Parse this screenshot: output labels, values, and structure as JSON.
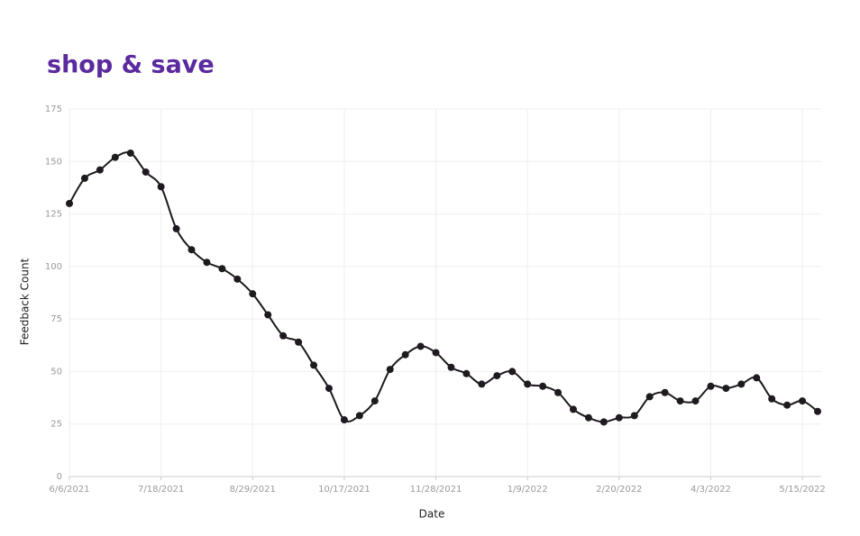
{
  "chart_data": {
    "type": "line",
    "title": "shop & save",
    "x_label": "Date",
    "y_label": "Feedback Count",
    "categories": [
      "6/6/2021",
      null,
      null,
      null,
      null,
      null,
      "7/18/2021",
      null,
      null,
      null,
      null,
      null,
      "8/29/2021",
      null,
      null,
      null,
      null,
      null,
      "10/17/2021",
      null,
      null,
      null,
      null,
      null,
      "11/28/2021",
      null,
      null,
      null,
      null,
      null,
      "1/9/2022",
      null,
      null,
      null,
      null,
      null,
      "2/20/2022",
      null,
      null,
      null,
      null,
      null,
      "4/3/2022",
      null,
      null,
      null,
      null,
      null,
      "5/15/2022",
      null
    ],
    "series": [
      {
        "name": "Feedback Count",
        "color": "#1e1a1f",
        "values": [
          130,
          142,
          146,
          152,
          154,
          145,
          138,
          118,
          108,
          102,
          99,
          94,
          87,
          77,
          67,
          64,
          53,
          42,
          27,
          29,
          36,
          51,
          58,
          62,
          59,
          52,
          49,
          44,
          48,
          50,
          44,
          43,
          40,
          32,
          28,
          26,
          28,
          29,
          38,
          40,
          36,
          36,
          43,
          42,
          44,
          47,
          37,
          34,
          36,
          31
        ]
      }
    ],
    "ylim": [
      0,
      175
    ],
    "yticks": [
      0,
      25,
      50,
      75,
      100,
      125,
      150,
      175
    ],
    "grid": true,
    "title_color": "#5b2a9e"
  }
}
